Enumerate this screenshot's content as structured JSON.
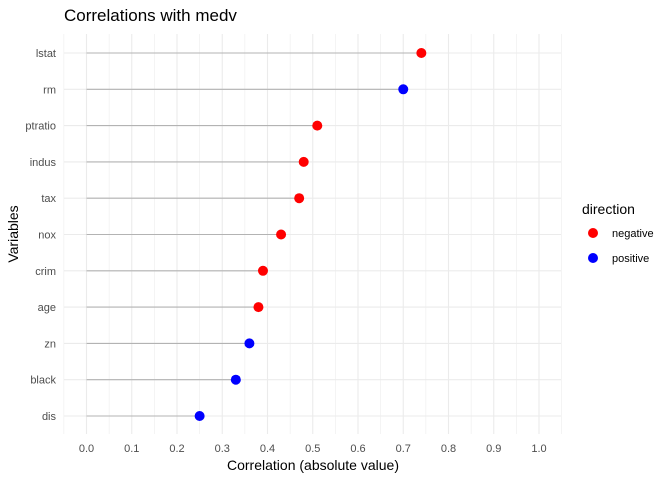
{
  "chart_data": {
    "type": "lollipop",
    "title": "Correlations with medv",
    "xlabel": "Correlation (absolute value)",
    "ylabel": "Variables",
    "xlim": [
      0,
      1
    ],
    "x_ticks": [
      "0.0",
      "0.1",
      "0.2",
      "0.3",
      "0.4",
      "0.5",
      "0.6",
      "0.7",
      "0.8",
      "0.9",
      "1.0"
    ],
    "categories": [
      "lstat",
      "rm",
      "ptratio",
      "indus",
      "tax",
      "nox",
      "crim",
      "age",
      "zn",
      "black",
      "dis"
    ],
    "values": [
      0.74,
      0.7,
      0.51,
      0.48,
      0.47,
      0.43,
      0.39,
      0.38,
      0.36,
      0.33,
      0.25
    ],
    "directions": [
      "negative",
      "positive",
      "negative",
      "negative",
      "negative",
      "negative",
      "negative",
      "negative",
      "positive",
      "positive",
      "positive"
    ],
    "legend": {
      "title": "direction",
      "position": "right",
      "entries": [
        {
          "label": "negative",
          "color": "#ff0000"
        },
        {
          "label": "positive",
          "color": "#0000ff"
        }
      ]
    },
    "grid": true,
    "segment_color": "#b3b3b3",
    "grid_color": "#ebebeb"
  }
}
